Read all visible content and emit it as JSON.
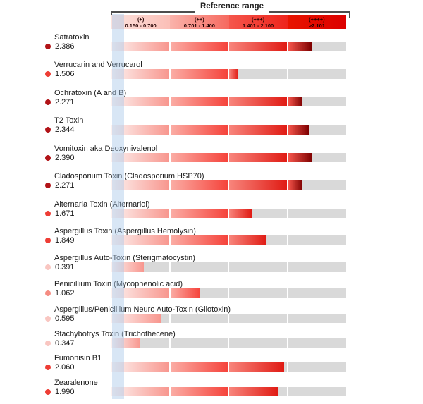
{
  "bracket": {
    "label": "Reference range"
  },
  "header_segments": [
    {
      "grade": "(+)",
      "range": "0.150 - 0.700"
    },
    {
      "grade": "(++)",
      "range": "0.701 - 1.400"
    },
    {
      "grade": "(+++)",
      "range": "1.401 - 2.100"
    },
    {
      "grade": "(++++)",
      "range": ">2.101"
    }
  ],
  "rows": [
    {
      "label": "Satratoxin",
      "value": "2.386"
    },
    {
      "label": "Verrucarin and Verrucarol",
      "value": "1.506"
    },
    {
      "label": "Ochratoxin (A and B)",
      "value": "2.271"
    },
    {
      "label": "T2 Toxin",
      "value": "2.344"
    },
    {
      "label": "Vomitoxin aka Deoxynivalenol",
      "value": "2.390"
    },
    {
      "label": "Cladosporium Toxin (Cladosporium HSP70)",
      "value": "2.271"
    },
    {
      "label": "Alternaria Toxin (Alternariol)",
      "value": "1.671"
    },
    {
      "label": "Aspergillus Toxin (Aspergillus Hemolysin)",
      "value": "1.849"
    },
    {
      "label": "Aspergillus Auto-Toxin (Sterigmatocystin)",
      "value": "0.391"
    },
    {
      "label": "Penicillium Toxin (Mycophenolic acid)",
      "value": "1.062"
    },
    {
      "label": "Aspergillus/Penicillium Neuro Auto-Toxin (Gliotoxin)",
      "value": "0.595"
    },
    {
      "label": "Stachybotrys Toxin (Trichothecene)",
      "value": "0.347"
    },
    {
      "label": "Fumonisin B1",
      "value": "2.060"
    },
    {
      "label": "Zearalenone",
      "value": "1.990"
    }
  ],
  "chart_data": {
    "type": "bar",
    "orientation": "horizontal",
    "title": "Reference range",
    "categories": [
      "Satratoxin",
      "Verrucarin and Verrucarol",
      "Ochratoxin (A and B)",
      "T2 Toxin",
      "Vomitoxin aka Deoxynivalenol",
      "Cladosporium Toxin (Cladosporium HSP70)",
      "Alternaria Toxin (Alternariol)",
      "Aspergillus Toxin (Aspergillus Hemolysin)",
      "Aspergillus Auto-Toxin (Sterigmatocystin)",
      "Penicillium Toxin (Mycophenolic acid)",
      "Aspergillus/Penicillium Neuro Auto-Toxin (Gliotoxin)",
      "Stachybotrys Toxin (Trichothecene)",
      "Fumonisin B1",
      "Zearalenone"
    ],
    "values": [
      2.386,
      1.506,
      2.271,
      2.344,
      2.39,
      2.271,
      1.671,
      1.849,
      0.391,
      1.062,
      0.595,
      0.347,
      2.06,
      1.99
    ],
    "xlim": [
      0,
      2.8
    ],
    "grid": false,
    "legend_position": "top",
    "reference_ranges": [
      {
        "grade": "(+)",
        "min": 0.15,
        "max": 0.7
      },
      {
        "grade": "(++)",
        "min": 0.701,
        "max": 1.4
      },
      {
        "grade": "(+++)",
        "min": 1.401,
        "max": 2.1
      },
      {
        "grade": "(++++)",
        "min": 2.101,
        "max": null
      }
    ]
  },
  "colors": {
    "header_bg_start": [
      "#fce2dd",
      "#fab3ab",
      "#f5564c",
      "#e81400"
    ],
    "header_bg_end": [
      "#fbbfb7",
      "#f6695f",
      "#ee241c",
      "#dc0000"
    ],
    "segment_fill_start": [
      "#fdf3f1",
      "#fbada5",
      "#f8857c",
      "#f6564c"
    ],
    "segment_fill_end": [
      "#f8968e",
      "#f5423a",
      "#e01b14",
      "#7e0000"
    ],
    "dot_tiers": [
      "#f9c6c1",
      "#f58c82",
      "#ee3d35",
      "#b11317"
    ],
    "track_gray": "#d9d9d9",
    "threshold_band": "#a8c8e9"
  }
}
